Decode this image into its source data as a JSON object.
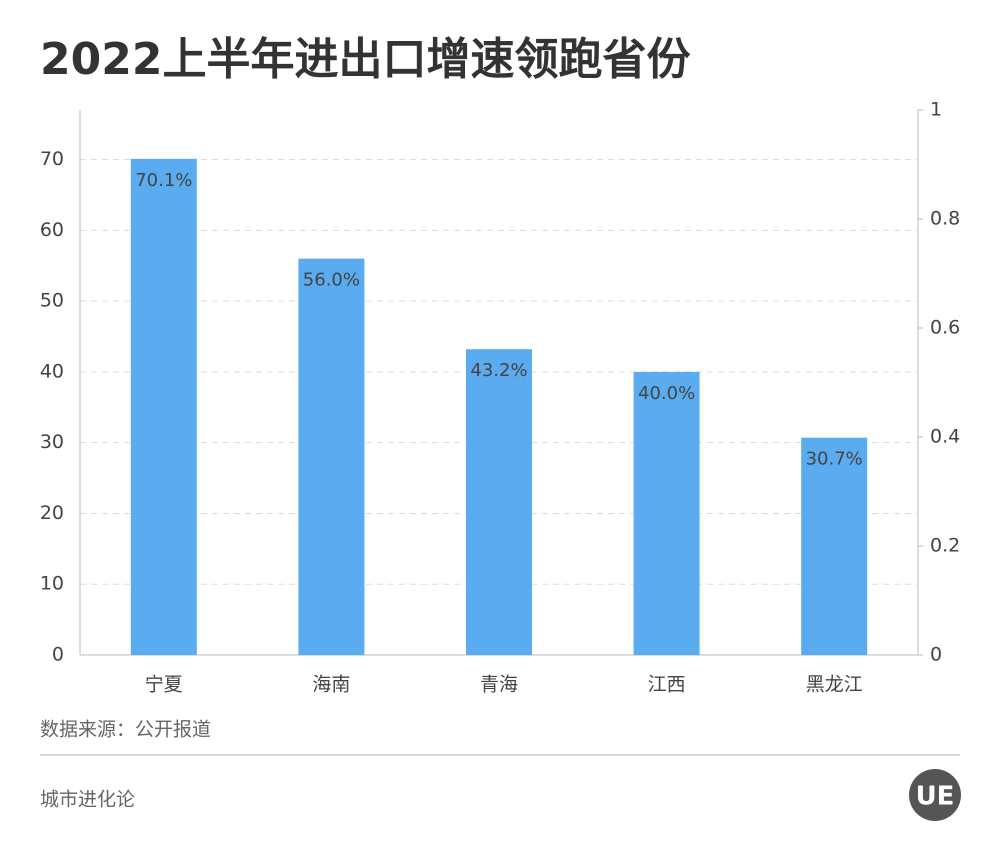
{
  "chart_data": {
    "type": "bar",
    "title": "2022上半年进出口增速领跑省份",
    "categories": [
      "宁夏",
      "海南",
      "青海",
      "江西",
      "黑龙江"
    ],
    "values": [
      70.1,
      56.0,
      43.2,
      40.0,
      30.7
    ],
    "value_labels": [
      "70.1%",
      "56.0%",
      "43.2%",
      "40.0%",
      "30.7%"
    ],
    "color": "#5aabf0",
    "ylim": [
      0,
      77
    ],
    "yticks": [
      0,
      10,
      20,
      30,
      40,
      50,
      60,
      70
    ],
    "y2lim": [
      0,
      1
    ],
    "y2ticks": [
      0,
      0.2,
      0.4,
      0.6,
      0.8,
      1
    ],
    "grid": true
  },
  "footer": {
    "source": "数据来源：公开报道",
    "brand": "城市进化论",
    "logo": "UE"
  }
}
